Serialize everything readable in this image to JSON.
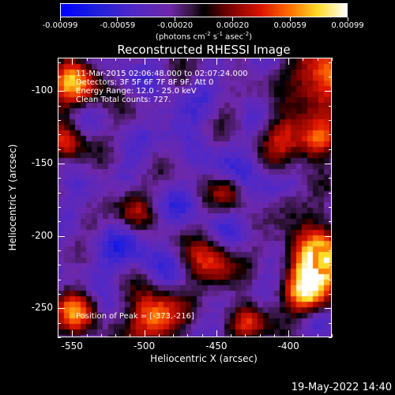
{
  "colorbar": {
    "ticks": [
      "-0.00099",
      "-0.00059",
      "-0.00020",
      "0.00020",
      "0.00059",
      "0.00099"
    ],
    "unit_parts": [
      "(photons cm",
      "-2",
      " s",
      "-1",
      " asec",
      "-2",
      ")"
    ]
  },
  "chart_data": {
    "type": "heatmap",
    "title": "Reconstructed RHESSI Image",
    "xlabel": "Heliocentric X (arcsec)",
    "ylabel": "Heliocentric Y (arcsec)",
    "xlim": [
      -560,
      -370
    ],
    "ylim": [
      -270,
      -77
    ],
    "x_ticks": [
      "-550",
      "-500",
      "-450",
      "-400"
    ],
    "y_ticks": [
      "-100",
      "-150",
      "-200",
      "-250"
    ],
    "color_range": [
      -0.00099,
      0.00099
    ],
    "colormap": "RHESSI purple-red-yellow",
    "peak_position": [
      -373,
      -216
    ]
  },
  "overlay": {
    "line1": "11-Mar-2015 02:06:48.000 to 02:07:24.000",
    "line2": "Detectors: 3F 5F 6F 7F 8F 9F, Att 0",
    "line3": "Energy Range: 12.0 - 25.0 keV",
    "line4": "Clean    Total counts: 727.",
    "peak_label": "Position of Peak = [-373,-216]"
  },
  "timestamp": "19-May-2022 14:40"
}
